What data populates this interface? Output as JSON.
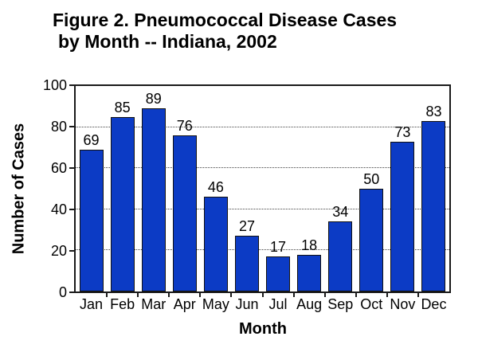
{
  "title": {
    "line1": "Figure 2.  Pneumococcal Disease Cases",
    "line2": "by Month -- Indiana, 2002"
  },
  "chart_data": {
    "type": "bar",
    "title": "Figure 2. Pneumococcal Disease Cases by Month -- Indiana, 2002",
    "categories": [
      "Jan",
      "Feb",
      "Mar",
      "Apr",
      "May",
      "Jun",
      "Jul",
      "Aug",
      "Sep",
      "Oct",
      "Nov",
      "Dec"
    ],
    "values": [
      69,
      85,
      89,
      76,
      46,
      27,
      17,
      18,
      34,
      50,
      73,
      83
    ],
    "xlabel": "Month",
    "ylabel": "Number of Cases",
    "ylim": [
      0,
      100
    ],
    "yticks": [
      0,
      20,
      40,
      60,
      80,
      100
    ],
    "gridlines": [
      20,
      40,
      60,
      80
    ],
    "grid": "horizontal-dotted",
    "data_labels": true,
    "legend": "none",
    "bar_color": "#0c3bc5",
    "bar_border_color": "#111111",
    "axis_color": "#1a1a1a",
    "text_color": "#000000",
    "background_color": "#ffffff"
  }
}
